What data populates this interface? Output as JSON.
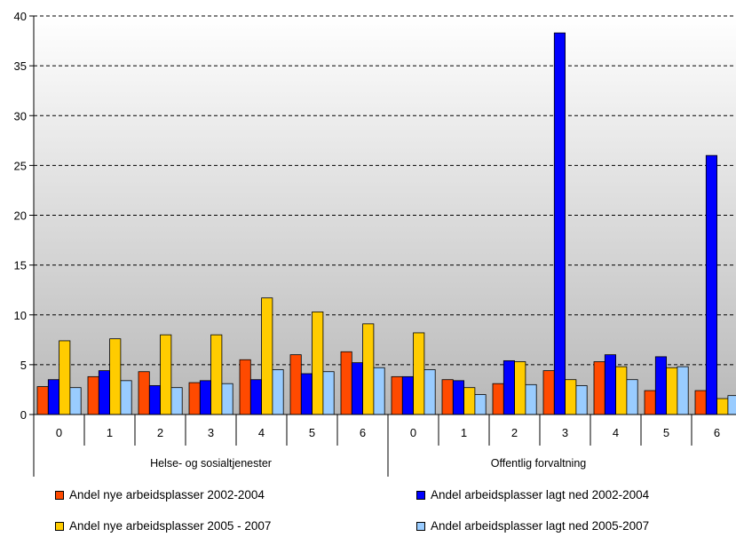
{
  "chart_data": {
    "type": "bar",
    "groups": [
      {
        "label": "Helse- og sosialtjenester",
        "categories": [
          "0",
          "1",
          "2",
          "3",
          "4",
          "5",
          "6"
        ]
      },
      {
        "label": "Offentlig forvaltning",
        "categories": [
          "0",
          "1",
          "2",
          "3",
          "4",
          "5",
          "6"
        ]
      }
    ],
    "series": [
      {
        "name": "Andel nye arbeidsplasser 2002-2004",
        "color": "#FF4A00",
        "values": [
          2.8,
          3.8,
          4.3,
          3.2,
          5.5,
          6.0,
          6.3,
          3.8,
          3.5,
          3.1,
          4.4,
          5.3,
          2.4,
          2.4
        ]
      },
      {
        "name": "Andel arbeidsplasser lagt ned 2002-2004",
        "color": "#0000FF",
        "values": [
          3.5,
          4.4,
          2.9,
          3.4,
          3.5,
          4.1,
          5.2,
          3.8,
          3.4,
          5.4,
          38.3,
          6.0,
          5.8,
          26.0
        ]
      },
      {
        "name": "Andel nye arbeidsplasser 2005 - 2007",
        "color": "#FFCC00",
        "values": [
          7.4,
          7.6,
          8.0,
          8.0,
          11.7,
          10.3,
          9.1,
          8.2,
          2.7,
          5.3,
          3.5,
          4.8,
          4.7,
          1.6
        ]
      },
      {
        "name": "Andel arbeidsplasser lagt ned 2005-2007",
        "color": "#99CCFF",
        "values": [
          2.7,
          3.4,
          2.7,
          3.1,
          4.5,
          4.3,
          4.7,
          4.5,
          2.0,
          3.0,
          2.9,
          3.5,
          4.8,
          1.9
        ]
      }
    ],
    "ylim": [
      0,
      40
    ],
    "yticks": [
      "0",
      "5",
      "10",
      "15",
      "20",
      "25",
      "30",
      "35",
      "40"
    ],
    "grid": true,
    "legend_position": "bottom"
  }
}
